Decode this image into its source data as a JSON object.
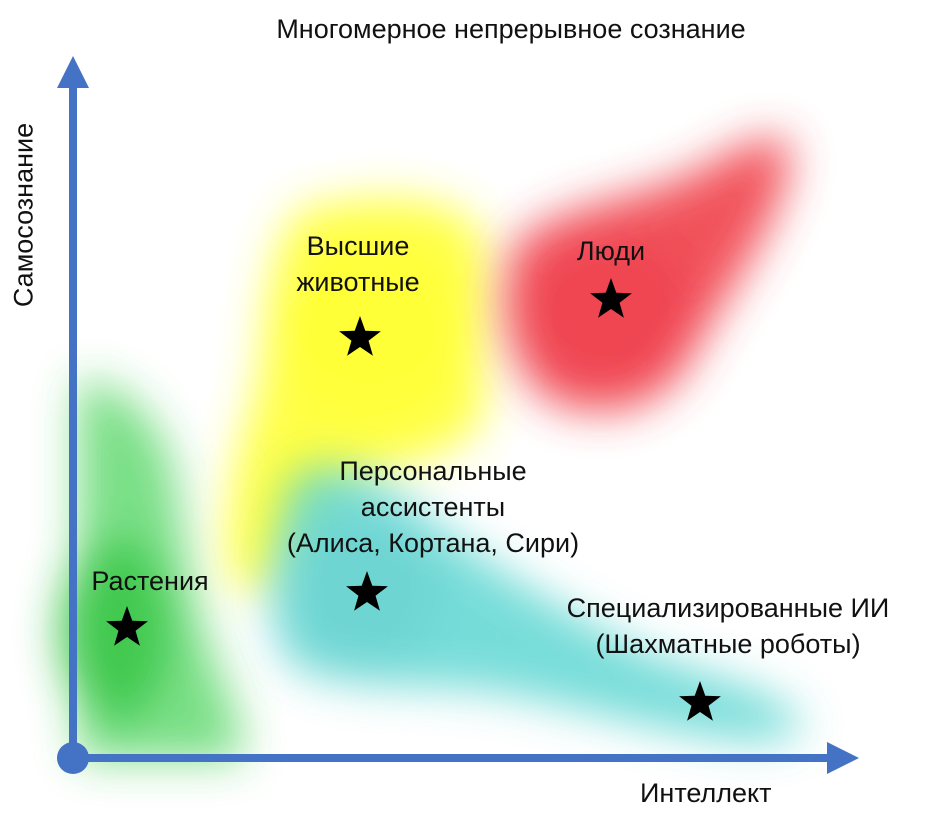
{
  "title": "Многомерное непрерывное сознание",
  "axes": {
    "x_label": "Интеллект",
    "y_label": "Самосознание"
  },
  "colors": {
    "axis": "#4472c4",
    "plants": "#2ecc40",
    "animals": "#ffff33",
    "humans": "#f0404a",
    "assistants": "#48d1cc",
    "special_ai": "#48d1cc",
    "star": "#000000"
  },
  "regions": [
    {
      "id": "plants",
      "lines": [
        "Растения"
      ]
    },
    {
      "id": "animals",
      "lines": [
        "Высшие",
        "животные"
      ]
    },
    {
      "id": "humans",
      "lines": [
        "Люди"
      ]
    },
    {
      "id": "assistants",
      "lines": [
        "Персональные",
        "ассистенты",
        "(Алиса, Кортана, Сири)"
      ]
    },
    {
      "id": "special_ai",
      "lines": [
        "Специализированные ИИ",
        "(Шахматные роботы)"
      ]
    }
  ]
}
